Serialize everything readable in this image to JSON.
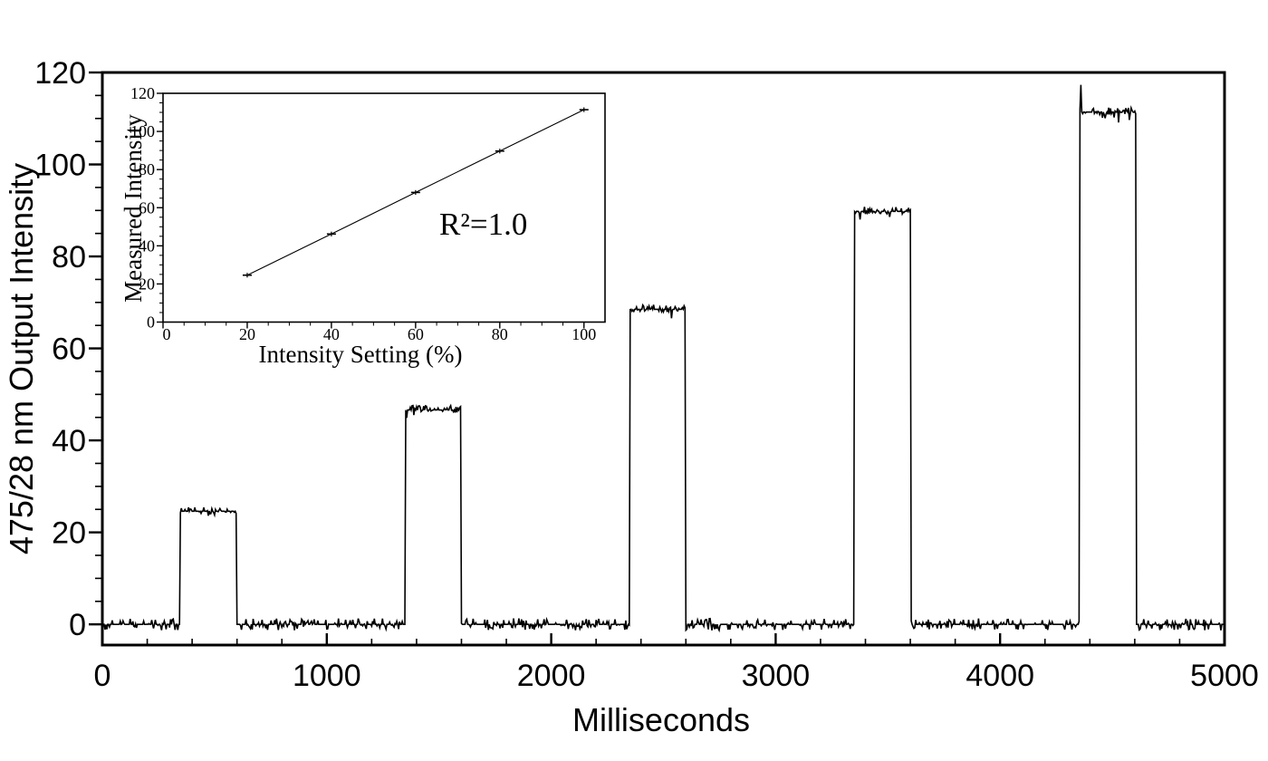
{
  "figure": {
    "background": "#ffffff",
    "ink": "#000000"
  },
  "chart_data": [
    {
      "id": "main",
      "type": "line",
      "title": "",
      "xlabel": "Milliseconds",
      "ylabel": "475/28 nm Output Intensity",
      "xlim": [
        0,
        5000
      ],
      "ylim": [
        -4.5,
        120
      ],
      "x_ticks": [
        0,
        1000,
        2000,
        3000,
        4000,
        5000
      ],
      "y_ticks": [
        0,
        20,
        40,
        60,
        80,
        100,
        120
      ],
      "x_minor_step": 200,
      "y_minor_step": 5,
      "grid": false,
      "legend": "none",
      "series": [
        {
          "name": "output-intensity-trace",
          "baseline": 0,
          "baseline_noise_amplitude": 1.3,
          "plateau_noise_amplitude": 1.0,
          "pulses": [
            {
              "start_ms": 345,
              "end_ms": 600,
              "level": 24.6
            },
            {
              "start_ms": 1350,
              "end_ms": 1600,
              "level": 46.6
            },
            {
              "start_ms": 2350,
              "end_ms": 2600,
              "level": 68.5
            },
            {
              "start_ms": 3350,
              "end_ms": 3603,
              "level": 89.8,
              "overshoot": 93.2
            },
            {
              "start_ms": 4355,
              "end_ms": 4605,
              "level": 111.4,
              "overshoot": 117.3
            }
          ]
        }
      ]
    },
    {
      "id": "inset",
      "type": "scatter",
      "title": "",
      "xlabel": "Intensity Setting (%)",
      "ylabel": "Measured Intensity",
      "annotation": "R²=1.0",
      "xlim": [
        0,
        105
      ],
      "ylim": [
        0,
        120
      ],
      "x_ticks": [
        0,
        20,
        40,
        60,
        80,
        100
      ],
      "y_ticks": [
        0,
        20,
        40,
        60,
        80,
        100,
        120
      ],
      "x_minor_step": 5,
      "y_minor_step": 5,
      "grid": false,
      "x": [
        20,
        40,
        60,
        80,
        100
      ],
      "y": [
        24.6,
        46.2,
        68.0,
        89.7,
        111.4
      ],
      "fit_line": true
    }
  ]
}
